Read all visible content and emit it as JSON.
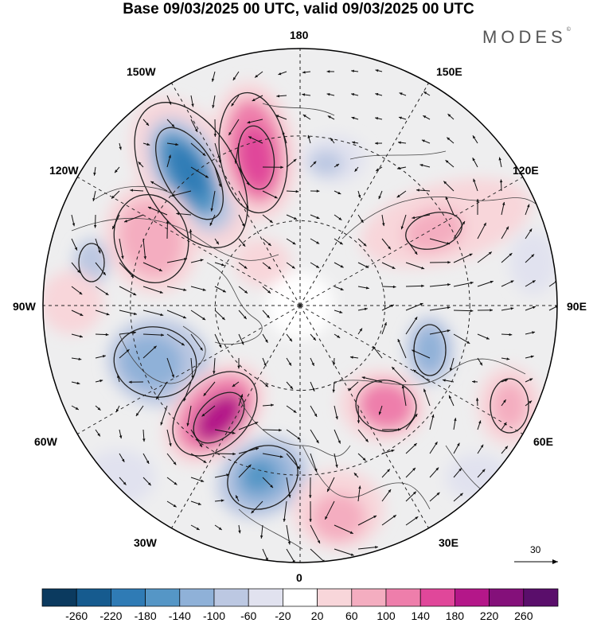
{
  "header": {
    "title": "Base 09/03/2025 00 UTC, valid 09/03/2025 00 UTC",
    "brand": "MODES"
  },
  "map": {
    "projection": "north-polar-stereographic",
    "longitude_labels": {
      "lon_180": "180",
      "lon_150w": "150W",
      "lon_150e": "150E",
      "lon_120w": "120W",
      "lon_120e": "120E",
      "lon_90w": "90W",
      "lon_90e": "90E",
      "lon_60w": "60W",
      "lon_60e": "60E",
      "lon_30w": "30W",
      "lon_30e": "30E",
      "lon_0": "0"
    },
    "vector_scale_label": "30"
  },
  "colorbar": {
    "labels": [
      "-260",
      "-220",
      "-180",
      "-140",
      "-100",
      "-60",
      "-20",
      "20",
      "60",
      "100",
      "140",
      "180",
      "220",
      "260"
    ],
    "colors": [
      "#0b3a5f",
      "#165b8f",
      "#2f7bb5",
      "#5596c6",
      "#8fb1d8",
      "#bcc8e2",
      "#e1e2ef",
      "#ffffff",
      "#f8d6da",
      "#f4adc0",
      "#ee7eab",
      "#e0479a",
      "#b41789",
      "#84107a",
      "#5a0e6b"
    ]
  }
}
